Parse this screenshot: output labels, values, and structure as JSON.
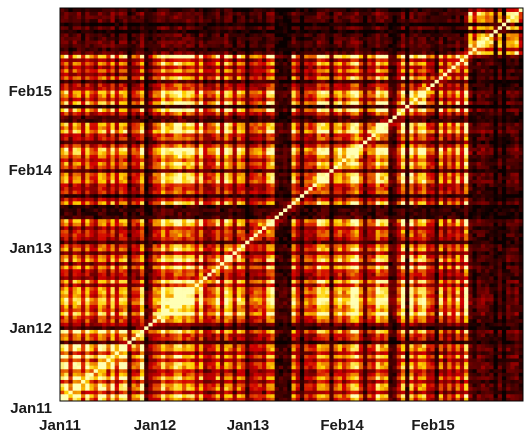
{
  "chart_data": {
    "type": "heatmap",
    "title": "",
    "xlabel": "",
    "ylabel": "",
    "x_ticks": [
      "Jan11",
      "Jan12",
      "Jan13",
      "Feb14",
      "Feb15"
    ],
    "y_ticks": [
      "Jan11",
      "Jan12",
      "Jan13",
      "Feb14",
      "Feb15"
    ],
    "colormap": "hot",
    "value_range": [
      0,
      1
    ],
    "diagonal": "bright",
    "matrix_size": 110,
    "blocks": [
      {
        "period": "Jan12-Feb15",
        "level": "high"
      },
      {
        "period": "after Feb15",
        "level": "low"
      }
    ],
    "colors": {
      "low": "#0a0000",
      "mid": "#c81e00",
      "high": "#ffd200",
      "peak": "#ffffb4"
    }
  }
}
